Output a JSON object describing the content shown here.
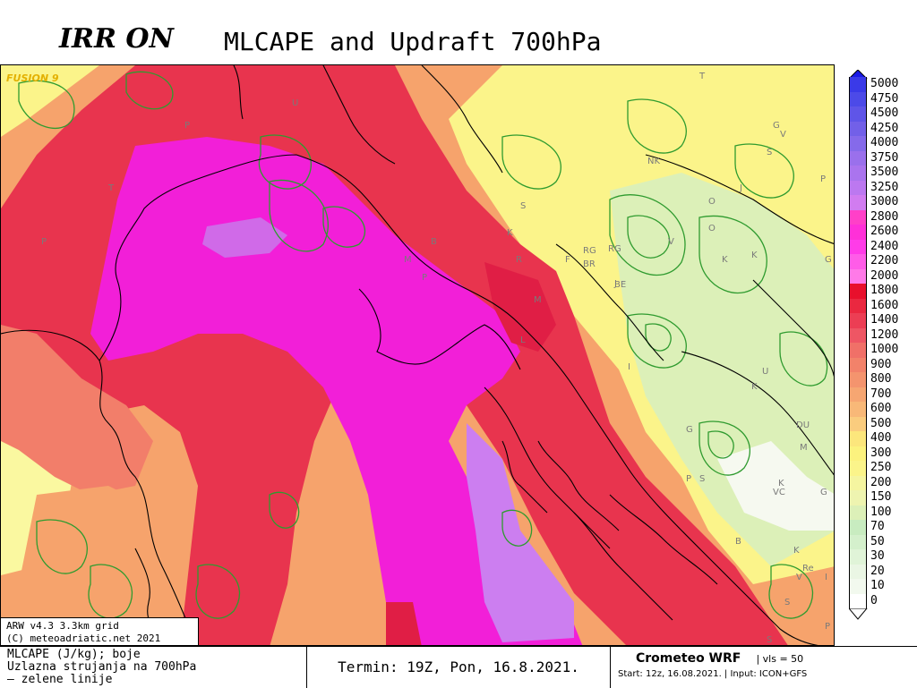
{
  "header": {
    "brand": "IRR ON",
    "title": "MLCAPE and Updraft 700hPa"
  },
  "map": {
    "watermark": "FUSION 9",
    "region_letters": [
      "P",
      "U",
      "T",
      "P",
      "B",
      "M",
      "P",
      "R",
      "S",
      "K",
      "F",
      "BR",
      "RG",
      "J",
      "V",
      "K",
      "O",
      "J",
      "K",
      "V",
      "T",
      "G",
      "NK",
      "S",
      "P",
      "G",
      "I",
      "U",
      "K",
      "G",
      "S",
      "DU",
      "M",
      "K",
      "VC",
      "G",
      "P",
      "B",
      "K",
      "Re",
      "V",
      "I",
      "S",
      "P",
      "S",
      "L",
      "M",
      "O",
      "BE",
      "RG"
    ],
    "colors": {
      "yellow": "#fff37a",
      "light_yellow": "#faf8a0",
      "pale_green": "#d8f3c0",
      "orange": "#f6a36c",
      "salmon": "#f27e6a",
      "red": "#e8344e",
      "crimson": "#e01e45",
      "magenta": "#f21fd8",
      "pink_magenta": "#f04ce1",
      "violet": "#d06ae8",
      "lavender": "#cc7ef0",
      "contour_green": "#2f9b2f",
      "coast": "#000000"
    }
  },
  "info_box": {
    "line1": "ARW v4.3 3.3km grid",
    "line2": "(C) meteoadriatic.net 2021"
  },
  "legend": {
    "top_arrow_color": "#1a1ae6",
    "bottom_arrow_color": "#ffffff",
    "entries": [
      {
        "label": "5000",
        "color": "#3a3ae8"
      },
      {
        "label": "4750",
        "color": "#4c4ae8"
      },
      {
        "label": "4500",
        "color": "#5f55e8"
      },
      {
        "label": "4250",
        "color": "#7260e8"
      },
      {
        "label": "4000",
        "color": "#856aea"
      },
      {
        "label": "3750",
        "color": "#9a70ec"
      },
      {
        "label": "3500",
        "color": "#aa74ee"
      },
      {
        "label": "3250",
        "color": "#bc78f0"
      },
      {
        "label": "3000",
        "color": "#d17cf0"
      },
      {
        "label": "2800",
        "color": "#ff40c8"
      },
      {
        "label": "2600",
        "color": "#ff30d8"
      },
      {
        "label": "2400",
        "color": "#ff3ce8"
      },
      {
        "label": "2200",
        "color": "#ff5ce8"
      },
      {
        "label": "2000",
        "color": "#ff7ae8"
      },
      {
        "label": "1800",
        "color": "#e8102c"
      },
      {
        "label": "1600",
        "color": "#ea2840"
      },
      {
        "label": "1400",
        "color": "#ec3e54"
      },
      {
        "label": "1200",
        "color": "#ee5664"
      },
      {
        "label": "1000",
        "color": "#f07068"
      },
      {
        "label": "900",
        "color": "#f2826a"
      },
      {
        "label": "800",
        "color": "#f4946e"
      },
      {
        "label": "700",
        "color": "#f6a672"
      },
      {
        "label": "600",
        "color": "#f8b878"
      },
      {
        "label": "500",
        "color": "#facc7e"
      },
      {
        "label": "400",
        "color": "#fce67c"
      },
      {
        "label": "300",
        "color": "#fcf27e"
      },
      {
        "label": "250",
        "color": "#fbf48a"
      },
      {
        "label": "200",
        "color": "#f5f5a0"
      },
      {
        "label": "150",
        "color": "#eef4b0"
      },
      {
        "label": "100",
        "color": "#dcf0b8"
      },
      {
        "label": "70",
        "color": "#c8ecc0"
      },
      {
        "label": "50",
        "color": "#d4f0cc"
      },
      {
        "label": "30",
        "color": "#e0f4d8"
      },
      {
        "label": "20",
        "color": "#eaf6e4"
      },
      {
        "label": "10",
        "color": "#f2f9ee"
      },
      {
        "label": "0",
        "color": "#ffffff"
      }
    ]
  },
  "footer": {
    "left_line1": "MLCAPE (J/kg); boje",
    "left_line2": "Uzlazna strujanja na 700hPa",
    "left_line3": "— zelene linije",
    "termin": "Termin: 19Z, Pon, 16.8.2021.",
    "cw_title": "Crometeo WRF",
    "cw_vls": "| vls = 50",
    "cw_start": "Start: 12z, 16.08.2021. | Input: ICON+GFS"
  }
}
